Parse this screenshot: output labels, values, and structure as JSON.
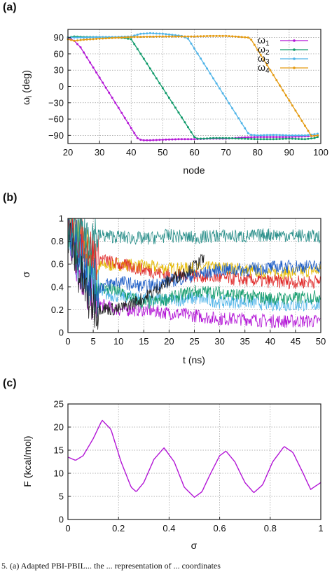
{
  "colors": {
    "omega1": "#b316d6",
    "omega2": "#0f9a6a",
    "omega3": "#4fb4e8",
    "omega4": "#e49a10",
    "sigma_lines": [
      "#e4b800",
      "#b316d6",
      "#4fb4e8",
      "#0f9a6a",
      "#e02a2a",
      "#1f5fc8",
      "#222222",
      "#2a8f8a"
    ],
    "free_energy": "#b316d6"
  },
  "caption": "5. (a) Adapted PBI-PBIL... the ... representation of ... coordinates",
  "chart_data": [
    {
      "panel_label": "(a)",
      "type": "line",
      "xlabel": "node",
      "ylabel": "ω_i (deg)",
      "ylabel_main": "ω",
      "ylabel_sub": "i",
      "ylabel_unit": " (deg)",
      "xlim": [
        20,
        100
      ],
      "ylim": [
        -105,
        105
      ],
      "xticks": [
        20,
        30,
        40,
        50,
        60,
        70,
        80,
        90,
        100
      ],
      "xtick_labels": [
        "20",
        "30",
        "40",
        "50",
        "60",
        "70",
        "80",
        "90",
        "100"
      ],
      "yticks": [
        90,
        60,
        30,
        0,
        -30,
        -60,
        -90
      ],
      "ytick_labels": [
        "90",
        "60",
        "30",
        "0",
        "−30",
        "−60",
        "−90"
      ],
      "grid": true,
      "legend_position": "top-right",
      "series": [
        {
          "name": "ω1",
          "name_main": "ω",
          "name_sub": "1",
          "x": [
            20,
            22,
            24,
            42,
            43,
            44,
            46,
            50,
            55,
            60,
            65,
            70,
            75,
            80,
            85,
            90,
            95,
            98,
            99
          ],
          "y": [
            90,
            84,
            72,
            -95,
            -98,
            -99,
            -99,
            -98,
            -97,
            -97,
            -96,
            -96,
            -94,
            -93,
            -93,
            -93,
            -92,
            -91,
            -90
          ]
        },
        {
          "name": "ω2",
          "name_main": "ω",
          "name_sub": "2",
          "x": [
            20,
            22,
            25,
            30,
            35,
            38,
            40,
            60,
            61,
            63,
            66,
            70,
            75,
            80,
            85,
            90,
            95,
            98,
            99
          ],
          "y": [
            90,
            92,
            91,
            91,
            90,
            89,
            87,
            -93,
            -96,
            -96,
            -95,
            -95,
            -96,
            -97,
            -97,
            -96,
            -97,
            -95,
            -93
          ]
        },
        {
          "name": "ω3",
          "name_main": "ω",
          "name_sub": "3",
          "x": [
            20,
            25,
            30,
            35,
            40,
            43,
            46,
            50,
            53,
            56,
            58,
            77,
            78,
            80,
            85,
            90,
            95,
            98,
            99
          ],
          "y": [
            90,
            90,
            91,
            91,
            92,
            97,
            98,
            97,
            95,
            93,
            88,
            -86,
            -89,
            -90,
            -89,
            -90,
            -90,
            -88,
            -87
          ]
        },
        {
          "name": "ω4",
          "name_main": "ω",
          "name_sub": "4",
          "x": [
            20,
            22,
            25,
            30,
            40,
            50,
            60,
            65,
            70,
            75,
            77,
            78,
            97,
            98,
            99
          ],
          "y": [
            87,
            84,
            86,
            88,
            91,
            92,
            92,
            93,
            93,
            91,
            90,
            86,
            -91,
            -91,
            -90
          ]
        }
      ]
    },
    {
      "panel_label": "(b)",
      "type": "line",
      "xlabel": "t (ns)",
      "ylabel": "σ",
      "xlim": [
        0,
        50
      ],
      "ylim": [
        0,
        1
      ],
      "xticks": [
        0,
        5,
        10,
        15,
        20,
        25,
        30,
        35,
        40,
        45,
        50
      ],
      "xtick_labels": [
        "0",
        "5",
        "10",
        "15",
        "20",
        "25",
        "30",
        "35",
        "40",
        "45",
        "50"
      ],
      "yticks": [
        0,
        0.2,
        0.4,
        0.6,
        0.8,
        1
      ],
      "ytick_labels": [
        "0",
        "0.2",
        "0.4",
        "0.6",
        "0.8",
        "1"
      ],
      "grid": true,
      "series": [
        {
          "x": [
            0,
            2,
            4,
            6,
            10,
            15,
            20,
            25,
            30,
            35,
            40,
            45,
            50
          ],
          "y": [
            0.95,
            0.8,
            0.7,
            0.58,
            0.6,
            0.58,
            0.56,
            0.56,
            0.57,
            0.55,
            0.52,
            0.53,
            0.55
          ]
        },
        {
          "x": [
            0,
            2,
            4,
            6,
            10,
            15,
            20,
            25,
            30,
            35,
            40,
            45,
            50
          ],
          "y": [
            0.9,
            0.6,
            0.35,
            0.25,
            0.2,
            0.2,
            0.17,
            0.15,
            0.12,
            0.12,
            0.1,
            0.1,
            0.1
          ]
        },
        {
          "x": [
            0,
            2,
            4,
            6,
            10,
            15,
            20,
            25,
            30,
            35,
            40,
            45,
            50
          ],
          "y": [
            0.9,
            0.65,
            0.45,
            0.35,
            0.32,
            0.3,
            0.28,
            0.3,
            0.27,
            0.27,
            0.25,
            0.24,
            0.25
          ]
        },
        {
          "x": [
            0,
            2,
            4,
            6,
            10,
            15,
            20,
            25,
            30,
            35,
            40,
            45,
            50
          ],
          "y": [
            0.95,
            0.75,
            0.55,
            0.4,
            0.36,
            0.25,
            0.3,
            0.36,
            0.35,
            0.32,
            0.3,
            0.3,
            0.32
          ]
        },
        {
          "x": [
            0,
            2,
            4,
            6,
            10,
            15,
            20,
            25,
            30,
            35,
            40,
            45,
            50
          ],
          "y": [
            0.95,
            0.85,
            0.75,
            0.65,
            0.6,
            0.55,
            0.5,
            0.5,
            0.48,
            0.46,
            0.45,
            0.44,
            0.45
          ]
        },
        {
          "x": [
            0,
            2,
            4,
            6,
            10,
            15,
            20,
            25,
            30,
            35,
            40,
            45,
            50
          ],
          "y": [
            0.95,
            0.75,
            0.5,
            0.4,
            0.45,
            0.4,
            0.45,
            0.5,
            0.55,
            0.55,
            0.57,
            0.58,
            0.58
          ]
        },
        {
          "x": [
            0,
            2,
            4,
            6,
            10,
            15,
            20,
            25,
            27
          ],
          "y": [
            0.9,
            0.55,
            0.3,
            0.22,
            0.2,
            0.3,
            0.45,
            0.58,
            0.65
          ]
        },
        {
          "x": [
            0,
            2,
            4,
            6,
            10,
            15,
            20,
            25,
            30,
            35,
            40,
            45,
            50
          ],
          "y": [
            0.95,
            0.9,
            0.88,
            0.85,
            0.84,
            0.82,
            0.85,
            0.83,
            0.85,
            0.84,
            0.86,
            0.85,
            0.84
          ]
        }
      ]
    },
    {
      "panel_label": "(c)",
      "type": "line",
      "xlabel": "σ",
      "ylabel": "F (kcal/mol)",
      "xlim": [
        0,
        1
      ],
      "ylim": [
        0,
        25
      ],
      "xticks": [
        0,
        0.2,
        0.4,
        0.6,
        0.8,
        1
      ],
      "xtick_labels": [
        "0",
        "0.2",
        "0.4",
        "0.6",
        "0.8",
        "1"
      ],
      "yticks": [
        0,
        5,
        10,
        15,
        20,
        25
      ],
      "ytick_labels": [
        "0",
        "5",
        "10",
        "15",
        "20",
        "25"
      ],
      "grid": true,
      "series": [
        {
          "x": [
            0,
            0.03,
            0.06,
            0.1,
            0.135,
            0.17,
            0.21,
            0.25,
            0.27,
            0.3,
            0.34,
            0.38,
            0.42,
            0.46,
            0.5,
            0.53,
            0.56,
            0.6,
            0.625,
            0.66,
            0.7,
            0.735,
            0.77,
            0.81,
            0.855,
            0.89,
            0.93,
            0.96,
            1.0
          ],
          "y": [
            13.5,
            12.8,
            13.8,
            17.5,
            21.5,
            19.5,
            12.5,
            7.0,
            6.0,
            8.0,
            13.0,
            15.5,
            12.5,
            7.0,
            4.8,
            6.0,
            9.5,
            13.8,
            14.8,
            12.5,
            8.0,
            5.8,
            7.5,
            12.5,
            15.8,
            14.5,
            10.0,
            6.5,
            8.0
          ]
        }
      ]
    }
  ]
}
